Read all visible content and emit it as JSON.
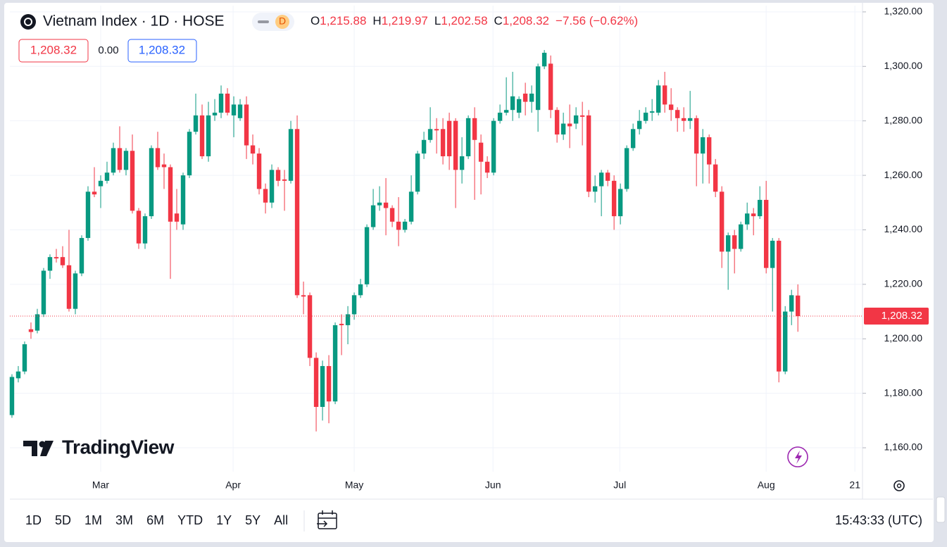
{
  "chart_data": {
    "type": "candlestick",
    "title": "Vietnam Index · 1D · HOSE",
    "badge": "D",
    "ohlc_header": [
      {
        "key": "O",
        "value": "1,215.88"
      },
      {
        "key": "H",
        "value": "1,219.97"
      },
      {
        "key": "L",
        "value": "1,202.58"
      },
      {
        "key": "C",
        "value": "1,208.32"
      }
    ],
    "change": "−7.56 (−0.62%)",
    "price_boxes": [
      "1,208.32",
      "0.00",
      "1,208.32"
    ],
    "watermark": "TradingView",
    "up_color": "#089981",
    "down_color": "#f23645",
    "open": [
      1172,
      1185.5,
      1188,
      1203.5,
      1203,
      1209,
      1225,
      1230,
      1230,
      1227,
      1211,
      1224,
      1237,
      1254,
      1256,
      1258,
      1261,
      1270,
      1262,
      1269,
      1247,
      1235,
      1245,
      1270,
      1264,
      1263,
      1246,
      1242,
      1260,
      1276,
      1282,
      1267,
      1282,
      1283,
      1290,
      1282,
      1281,
      1286,
      1271,
      1268,
      1255,
      1250,
      1262,
      1258.5,
      1258,
      1277,
      1216,
      1216,
      1193,
      1175,
      1190,
      1177,
      1205.5,
      1205,
      1209,
      1216,
      1220,
      1241,
      1249,
      1250,
      1248,
      1243,
      1240,
      1243,
      1254,
      1268,
      1273,
      1277,
      1277,
      1280,
      1280,
      1262,
      1267,
      1281,
      1272,
      1265,
      1261,
      1280,
      1283,
      1284,
      1283,
      1290,
      1287,
      1284,
      1300,
      1301,
      1284,
      1275,
      1279,
      1279,
      1282,
      1282,
      1254,
      1256,
      1261,
      1258,
      1245,
      1255,
      1270,
      1277,
      1280,
      1283,
      1283,
      1293,
      1286,
      1284,
      1281,
      1280,
      1281,
      1268,
      1274,
      1264,
      1254,
      1232,
      1238,
      1233,
      1242,
      1246,
      1245,
      1251,
      1226,
      1236,
      1188,
      1210,
      1215.88
    ],
    "high": [
      1187,
      1190,
      1199,
      1206,
      1211,
      1226,
      1231,
      1233,
      1234,
      1240,
      1225,
      1238,
      1256,
      1263,
      1260,
      1265,
      1272,
      1278,
      1270,
      1275,
      1248,
      1246,
      1271,
      1276,
      1268,
      1264,
      1255,
      1261,
      1277,
      1290,
      1286,
      1287,
      1288,
      1293,
      1292,
      1289,
      1288,
      1289,
      1275,
      1270,
      1257,
      1264,
      1263,
      1262,
      1280,
      1282,
      1221,
      1217,
      1195,
      1192,
      1194,
      1206,
      1209,
      1212,
      1217,
      1222,
      1242,
      1255,
      1256,
      1259,
      1249,
      1252,
      1244,
      1260,
      1269,
      1276,
      1285,
      1281,
      1281,
      1283,
      1281,
      1274,
      1282,
      1285,
      1275,
      1267,
      1281,
      1286,
      1296,
      1298,
      1289,
      1294,
      1293,
      1301,
      1306,
      1304,
      1285,
      1283,
      1286,
      1285,
      1287,
      1284,
      1260,
      1262,
      1262,
      1260,
      1257,
      1271,
      1279,
      1284,
      1285,
      1288,
      1295,
      1298,
      1292,
      1285,
      1285,
      1291,
      1282,
      1277,
      1275,
      1266,
      1256,
      1239,
      1240,
      1243,
      1250,
      1248,
      1256,
      1258,
      1237,
      1237,
      1212,
      1218,
      1219.97
    ],
    "low": [
      1171,
      1184,
      1187,
      1200,
      1202,
      1208,
      1222,
      1228,
      1226,
      1210,
      1209,
      1223,
      1236,
      1252,
      1248,
      1257,
      1260,
      1261,
      1260,
      1246,
      1233,
      1233,
      1244,
      1262,
      1255,
      1222,
      1240,
      1240,
      1259,
      1275,
      1266,
      1265,
      1280,
      1281,
      1282,
      1274,
      1280,
      1266,
      1264,
      1253,
      1246,
      1248,
      1256,
      1247,
      1257,
      1215,
      1209,
      1190,
      1166,
      1170,
      1169,
      1176,
      1194,
      1198,
      1207,
      1215,
      1219,
      1240,
      1247,
      1238,
      1241,
      1234,
      1239,
      1242,
      1253,
      1266,
      1272,
      1268,
      1264,
      1262,
      1248,
      1257,
      1266,
      1251,
      1253,
      1259,
      1260,
      1279,
      1282,
      1280,
      1281,
      1282,
      1283,
      1276,
      1299,
      1281,
      1272,
      1273,
      1270,
      1277,
      1271,
      1252,
      1250,
      1245,
      1256,
      1240,
      1242,
      1254,
      1269,
      1275,
      1279,
      1280,
      1282,
      1283,
      1280,
      1276,
      1276,
      1277,
      1256,
      1257,
      1257,
      1252,
      1226,
      1218,
      1224,
      1232,
      1240,
      1238,
      1244,
      1224,
      1210,
      1184,
      1187,
      1205,
      1202.58
    ],
    "close": [
      1186,
      1188,
      1198,
      1202.5,
      1209,
      1225,
      1230,
      1229.5,
      1227,
      1211,
      1224,
      1237,
      1254,
      1253,
      1258,
      1261,
      1270,
      1262,
      1269,
      1247,
      1235,
      1245,
      1270,
      1263,
      1263,
      1243,
      1243,
      1260,
      1276,
      1282,
      1267,
      1282,
      1283,
      1290,
      1283,
      1286,
      1286,
      1271,
      1268,
      1255,
      1250,
      1262,
      1258,
      1258,
      1277,
      1216,
      1215.5,
      1193,
      1175,
      1190,
      1177,
      1205,
      1205,
      1209,
      1216,
      1220,
      1241,
      1249,
      1250,
      1248,
      1243,
      1240,
      1243,
      1254,
      1268,
      1273,
      1277,
      1276.5,
      1267,
      1267,
      1262,
      1267,
      1281,
      1273,
      1265,
      1261,
      1280,
      1283,
      1284,
      1289,
      1288,
      1287,
      1290,
      1300,
      1305,
      1284,
      1275,
      1279,
      1278,
      1282,
      1281.5,
      1254,
      1256,
      1261,
      1258,
      1245,
      1255,
      1270,
      1277,
      1280,
      1283,
      1283.5,
      1293,
      1286,
      1284,
      1281,
      1280,
      1281,
      1268,
      1274,
      1264,
      1254,
      1232,
      1238,
      1233,
      1242,
      1246,
      1245,
      1251,
      1226,
      1236,
      1188,
      1210,
      1216,
      1208.32
    ],
    "xlim": [
      -0.33,
      134.2
    ],
    "xticks": [
      {
        "value": 14,
        "label": "Mar"
      },
      {
        "value": 34.9,
        "label": "Apr"
      },
      {
        "value": 54,
        "label": "May"
      },
      {
        "value": 75.9,
        "label": "Jun"
      },
      {
        "value": 95.9,
        "label": "Jul"
      },
      {
        "value": 119,
        "label": "Aug"
      },
      {
        "value": 133,
        "label": "21"
      }
    ],
    "ylim": [
      1155.1,
      1322.3
    ],
    "yticks": [
      {
        "value": 1160,
        "label": "1,160.00"
      },
      {
        "value": 1180,
        "label": "1,180.00"
      },
      {
        "value": 1200,
        "label": "1,200.00"
      },
      {
        "value": 1220,
        "label": "1,220.00"
      },
      {
        "value": 1240,
        "label": "1,240.00"
      },
      {
        "value": 1260,
        "label": "1,260.00"
      },
      {
        "value": 1280,
        "label": "1,280.00"
      },
      {
        "value": 1300,
        "label": "1,300.00"
      },
      {
        "value": 1320,
        "label": "1,320.00"
      }
    ],
    "price_line": {
      "value": 1208.32,
      "label": "1,208.32"
    },
    "grid": true,
    "toolbar": {
      "ranges": [
        "1D",
        "5D",
        "1M",
        "3M",
        "6M",
        "YTD",
        "1Y",
        "5Y",
        "All"
      ],
      "time": "15:43:33 (UTC)"
    }
  }
}
